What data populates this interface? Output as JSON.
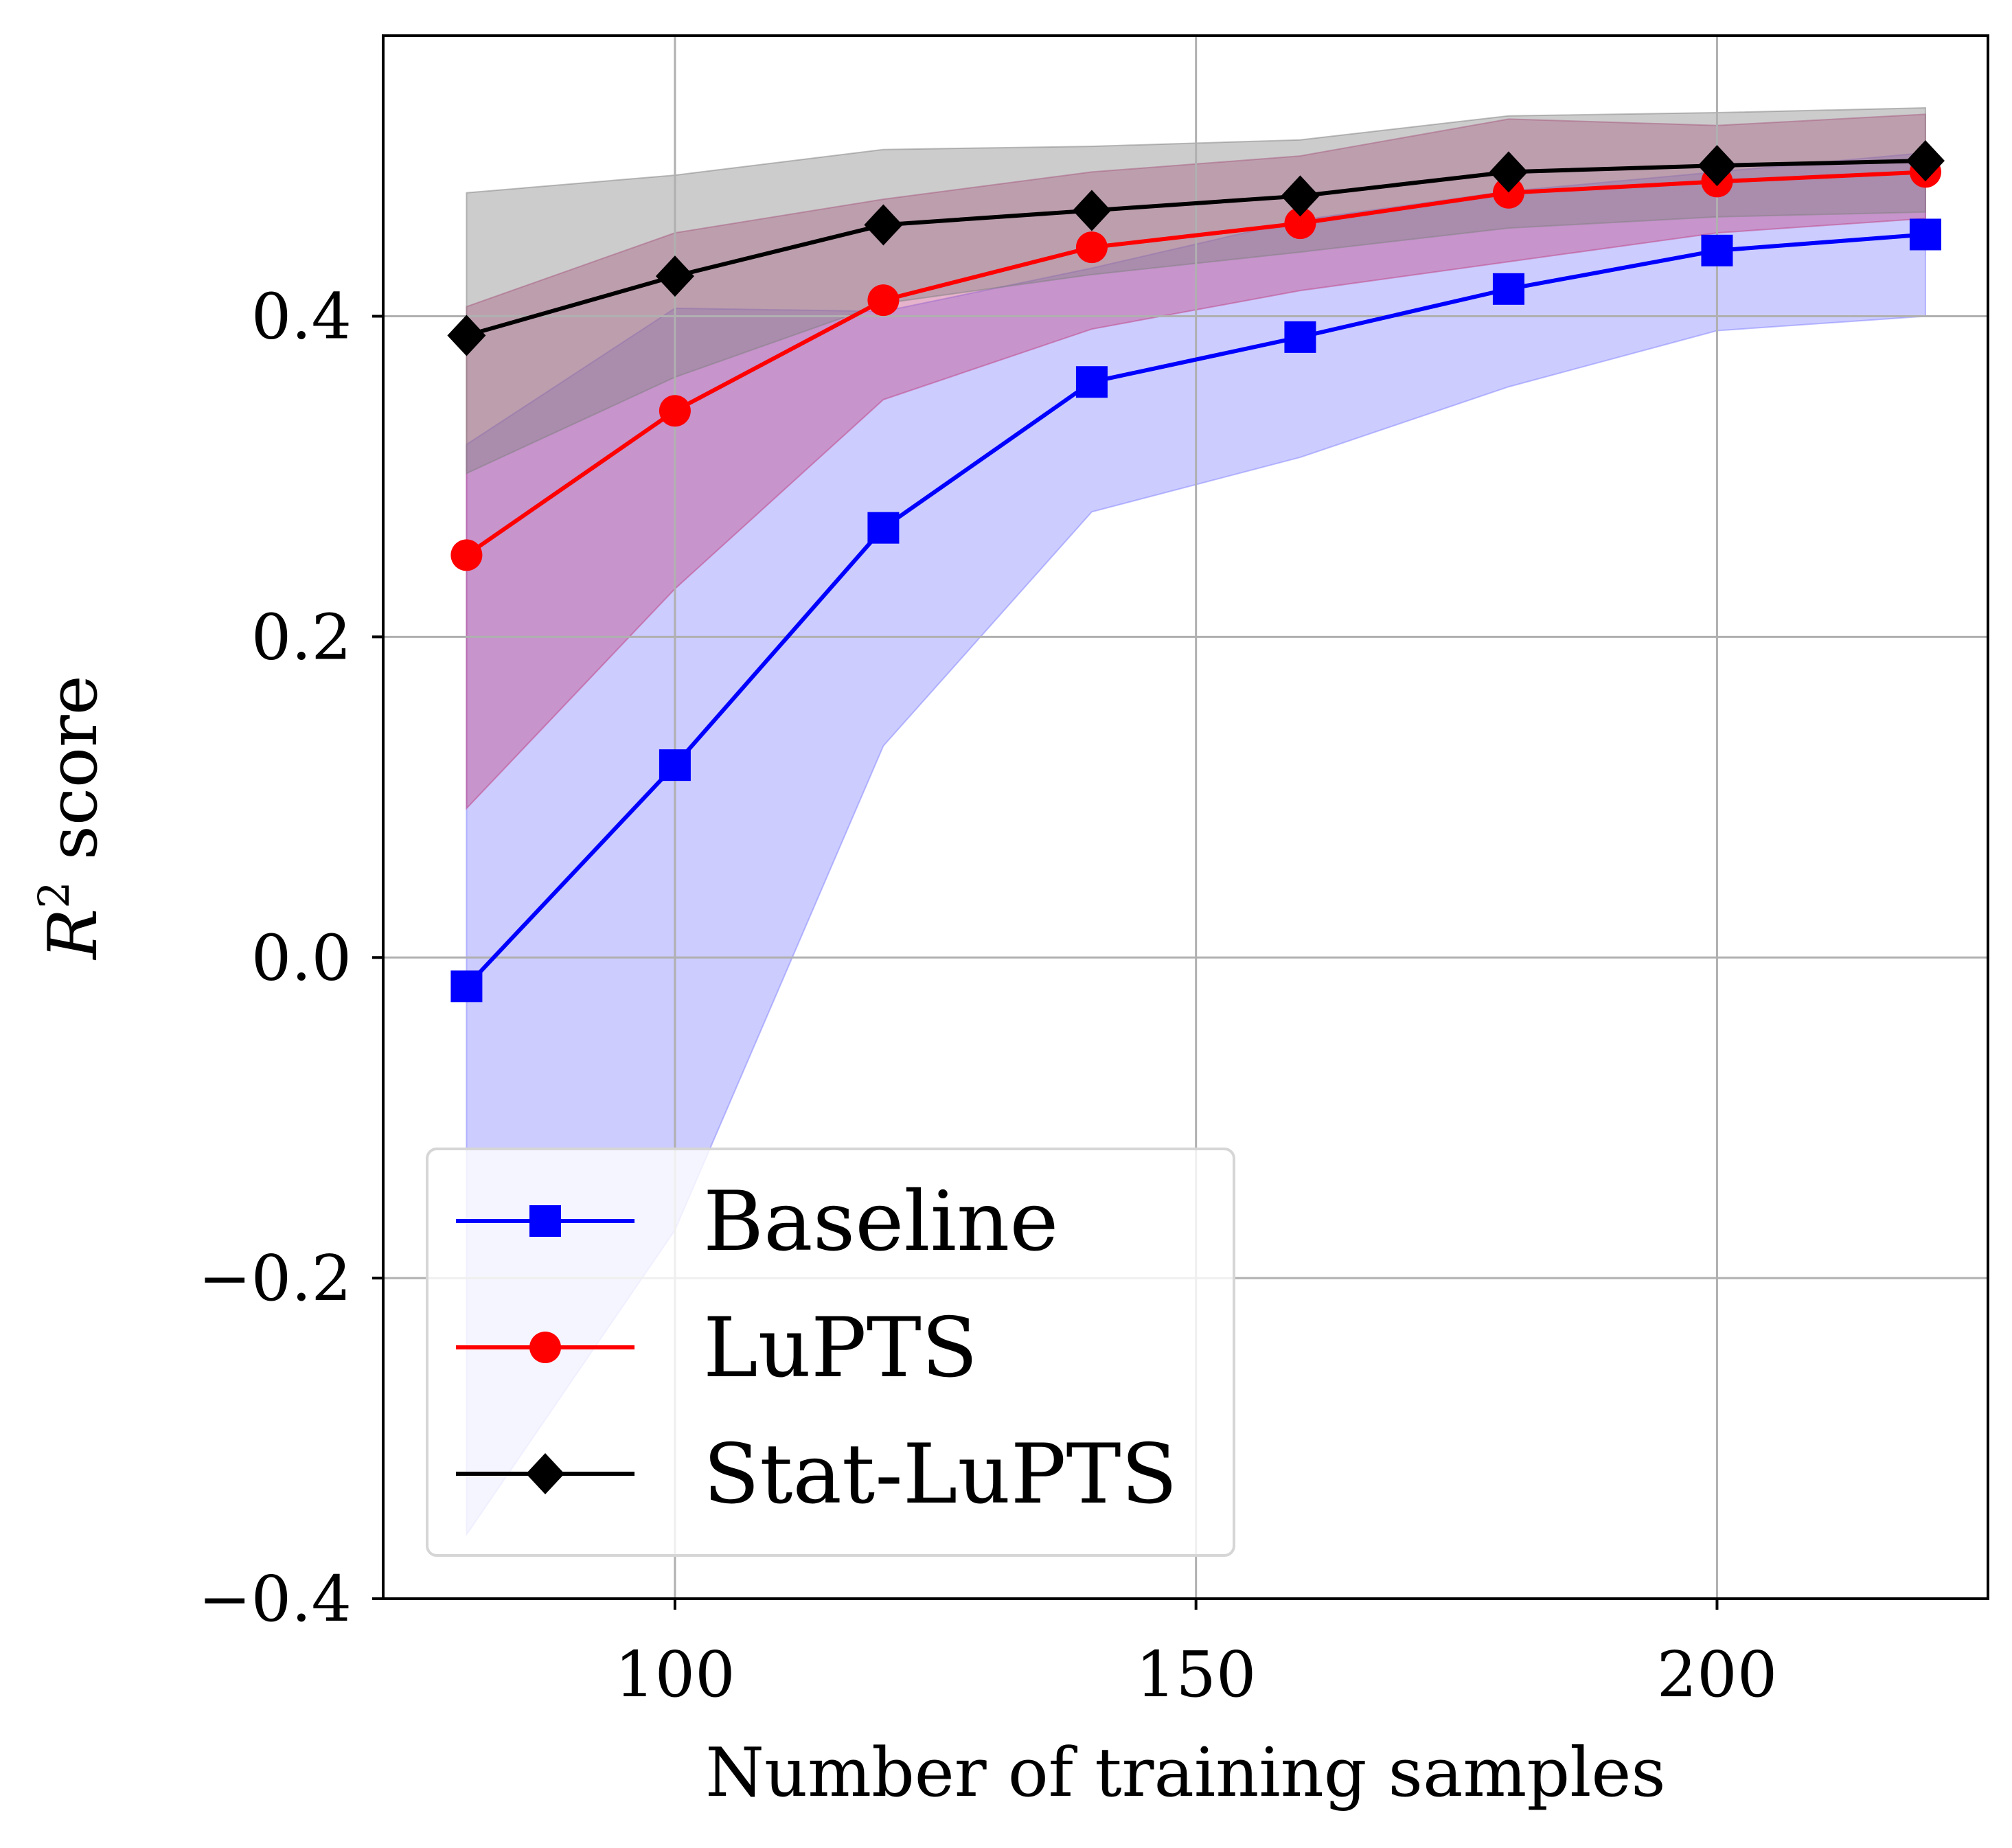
{
  "chart_data": {
    "type": "line",
    "title": "",
    "xlabel": "Number of training samples",
    "ylabel": "R² score",
    "ylabel_parts": {
      "symbol": "R",
      "superscript": "2",
      "rest": " score"
    },
    "xlim": [
      72,
      226
    ],
    "ylim": [
      -0.4,
      0.575
    ],
    "xticks": [
      100,
      150,
      200
    ],
    "xtick_labels": [
      "100",
      "150",
      "200"
    ],
    "yticks": [
      -0.4,
      -0.2,
      0.0,
      0.2,
      0.4
    ],
    "ytick_labels": [
      "−0.4",
      "−0.2",
      "0.0",
      "0.2",
      "0.4"
    ],
    "grid": true,
    "legend_position": "lower-left",
    "x": [
      80,
      100,
      120,
      140,
      160,
      180,
      200,
      220
    ],
    "series": [
      {
        "name": "Baseline",
        "color": "#0000ff",
        "band_color": "#8080ff",
        "marker": "square",
        "values": [
          -0.018,
          0.12,
          0.268,
          0.359,
          0.387,
          0.417,
          0.441,
          0.451
        ],
        "lower": [
          -0.36,
          -0.17,
          0.132,
          0.278,
          0.312,
          0.356,
          0.391,
          0.4
        ],
        "upper": [
          0.32,
          0.405,
          0.403,
          0.43,
          0.46,
          0.478,
          0.49,
          0.502
        ]
      },
      {
        "name": "LuPTS",
        "color": "#ff0000",
        "band_color": "#c04080",
        "marker": "circle",
        "values": [
          0.251,
          0.341,
          0.41,
          0.443,
          0.458,
          0.477,
          0.484,
          0.49
        ],
        "lower": [
          0.093,
          0.23,
          0.348,
          0.392,
          0.416,
          0.434,
          0.452,
          0.461
        ],
        "upper": [
          0.406,
          0.452,
          0.473,
          0.49,
          0.5,
          0.523,
          0.519,
          0.526
        ]
      },
      {
        "name": "Stat-LuPTS",
        "color": "#000000",
        "band_color": "#808080",
        "marker": "diamond",
        "values": [
          0.388,
          0.425,
          0.457,
          0.466,
          0.475,
          0.49,
          0.494,
          0.497
        ],
        "lower": [
          0.302,
          0.362,
          0.408,
          0.426,
          0.44,
          0.455,
          0.462,
          0.465
        ],
        "upper": [
          0.477,
          0.488,
          0.504,
          0.506,
          0.51,
          0.525,
          0.527,
          0.53
        ]
      }
    ]
  }
}
